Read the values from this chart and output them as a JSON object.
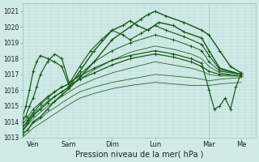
{
  "xlabel": "Pression niveau de la mer( hPa )",
  "ylim": [
    1013,
    1021.5
  ],
  "xlim": [
    0,
    6.5
  ],
  "yticks": [
    1013,
    1014,
    1015,
    1016,
    1017,
    1018,
    1019,
    1020,
    1021
  ],
  "xtick_labels": [
    "Ven",
    "Sam",
    "Dim",
    "Lun",
    "Mar",
    "Me"
  ],
  "xtick_positions": [
    0.3,
    1.3,
    2.5,
    3.7,
    5.2,
    6.1
  ],
  "vlines": [
    0.3,
    1.3,
    2.5,
    3.7,
    5.2,
    6.1
  ],
  "bg_color": "#d0eae8",
  "grid_major_color": "#90c8b8",
  "grid_minor_color": "#b0d8cc",
  "line_color": "#1a5e1a",
  "lw": 0.7,
  "lines": [
    {
      "x": [
        0,
        0.15,
        0.3,
        0.5,
        0.7,
        0.9,
        1.1,
        1.3,
        1.6,
        2.0,
        2.5,
        3.0,
        3.3,
        3.5,
        3.7,
        4.0,
        4.5,
        5.0,
        5.2,
        5.5,
        5.8,
        6.1
      ],
      "y": [
        1013.2,
        1013.5,
        1014.0,
        1014.3,
        1014.8,
        1015.3,
        1015.7,
        1016.1,
        1016.8,
        1017.8,
        1019.2,
        1020.0,
        1020.5,
        1020.8,
        1021.0,
        1020.7,
        1020.3,
        1019.8,
        1019.5,
        1018.5,
        1017.5,
        1017.1
      ],
      "markers": true,
      "lw_mult": 1.5
    },
    {
      "x": [
        0,
        0.15,
        0.3,
        0.5,
        0.7,
        0.9,
        1.1,
        1.3,
        1.6,
        2.0,
        2.5,
        2.8,
        3.0,
        3.2,
        3.5,
        3.8,
        4.2,
        4.5,
        5.0,
        5.2,
        5.5,
        6.1
      ],
      "y": [
        1013.4,
        1013.9,
        1014.4,
        1014.8,
        1015.2,
        1015.6,
        1015.9,
        1016.2,
        1017.2,
        1018.5,
        1019.8,
        1020.1,
        1020.4,
        1020.1,
        1019.8,
        1020.3,
        1020.1,
        1019.7,
        1019.3,
        1018.5,
        1017.4,
        1017.0
      ],
      "markers": true,
      "lw_mult": 1.5
    },
    {
      "x": [
        0,
        0.15,
        0.3,
        0.5,
        0.7,
        0.9,
        1.1,
        1.3,
        1.6,
        1.9,
        2.2,
        2.5,
        2.8,
        3.0,
        3.3,
        3.7,
        4.0,
        4.5,
        5.0,
        5.2,
        5.5,
        6.1
      ],
      "y": [
        1013.6,
        1014.1,
        1014.6,
        1015.1,
        1015.5,
        1015.9,
        1016.2,
        1016.4,
        1017.5,
        1018.5,
        1019.2,
        1019.8,
        1019.5,
        1019.2,
        1019.6,
        1020.1,
        1019.8,
        1019.4,
        1018.9,
        1018.2,
        1017.3,
        1017.0
      ],
      "markers": true,
      "lw_mult": 1.2
    },
    {
      "x": [
        0,
        0.15,
        0.3,
        0.5,
        0.7,
        0.9,
        1.1,
        1.3,
        1.6,
        2.0,
        2.5,
        3.0,
        3.7,
        4.2,
        4.7,
        5.0,
        5.2,
        5.5,
        6.1
      ],
      "y": [
        1013.8,
        1014.3,
        1014.8,
        1015.2,
        1015.6,
        1015.9,
        1016.2,
        1016.4,
        1017.0,
        1017.8,
        1018.5,
        1019.0,
        1019.5,
        1019.2,
        1018.8,
        1018.5,
        1017.8,
        1017.2,
        1017.0
      ],
      "markers": true,
      "lw_mult": 1.0
    },
    {
      "x": [
        0,
        0.15,
        0.3,
        0.5,
        0.7,
        0.9,
        1.1,
        1.3,
        1.6,
        2.0,
        2.5,
        3.0,
        3.7,
        4.2,
        4.7,
        5.0,
        5.2,
        5.5,
        6.1
      ],
      "y": [
        1013.6,
        1014.0,
        1014.5,
        1014.9,
        1015.3,
        1015.6,
        1015.9,
        1016.2,
        1016.7,
        1017.3,
        1017.9,
        1018.4,
        1018.8,
        1018.6,
        1018.3,
        1018.0,
        1017.5,
        1017.1,
        1016.9
      ],
      "markers": false,
      "lw_mult": 0.8
    },
    {
      "x": [
        0,
        0.15,
        0.3,
        0.5,
        0.7,
        0.9,
        1.1,
        1.3,
        1.6,
        2.0,
        2.5,
        3.0,
        3.7,
        4.2,
        4.7,
        5.0,
        5.2,
        5.5,
        6.1
      ],
      "y": [
        1013.4,
        1013.8,
        1014.2,
        1014.6,
        1015.0,
        1015.3,
        1015.6,
        1015.9,
        1016.3,
        1016.7,
        1017.1,
        1017.4,
        1017.8,
        1017.6,
        1017.4,
        1017.2,
        1017.0,
        1016.9,
        1016.9
      ],
      "markers": false,
      "lw_mult": 0.8
    },
    {
      "x": [
        0,
        0.15,
        0.3,
        0.5,
        0.7,
        0.9,
        1.1,
        1.3,
        1.6,
        2.0,
        2.5,
        3.0,
        3.7,
        4.2,
        4.7,
        5.0,
        5.2,
        5.5,
        6.1
      ],
      "y": [
        1013.2,
        1013.5,
        1013.9,
        1014.2,
        1014.6,
        1014.9,
        1015.2,
        1015.5,
        1015.9,
        1016.2,
        1016.5,
        1016.7,
        1017.0,
        1016.9,
        1016.8,
        1016.7,
        1016.6,
        1016.7,
        1016.8
      ],
      "markers": false,
      "lw_mult": 0.8
    },
    {
      "x": [
        0,
        0.15,
        0.3,
        0.5,
        0.7,
        0.9,
        1.1,
        1.3,
        1.6,
        2.0,
        2.5,
        3.0,
        3.7,
        4.2,
        4.7,
        5.0,
        5.2,
        5.5,
        6.1
      ],
      "y": [
        1013.0,
        1013.3,
        1013.6,
        1013.9,
        1014.2,
        1014.5,
        1014.8,
        1015.1,
        1015.5,
        1015.8,
        1016.1,
        1016.3,
        1016.5,
        1016.4,
        1016.3,
        1016.3,
        1016.3,
        1016.4,
        1016.5
      ],
      "markers": false,
      "lw_mult": 0.8
    },
    {
      "x": [
        0,
        0.1,
        0.2,
        0.3,
        0.4,
        0.5,
        0.7,
        0.9,
        1.1,
        1.3,
        1.6,
        2.0,
        2.5,
        3.0,
        3.7,
        4.2,
        4.7,
        5.0,
        5.2,
        5.35,
        5.5,
        5.65,
        5.8,
        5.95,
        6.1
      ],
      "y": [
        1014.0,
        1014.4,
        1015.0,
        1015.5,
        1016.2,
        1017.0,
        1017.8,
        1018.3,
        1018.0,
        1016.5,
        1016.9,
        1017.4,
        1017.9,
        1018.2,
        1018.5,
        1018.3,
        1018.0,
        1017.7,
        1016.0,
        1014.8,
        1015.0,
        1015.5,
        1014.8,
        1016.2,
        1017.1
      ],
      "markers": true,
      "lw_mult": 1.3
    },
    {
      "x": [
        0,
        0.1,
        0.2,
        0.3,
        0.4,
        0.5,
        0.7,
        0.9,
        1.1,
        1.3,
        1.6,
        2.0,
        2.5,
        3.0,
        3.7,
        4.2,
        4.7,
        5.0,
        5.2,
        5.5,
        6.1
      ],
      "y": [
        1014.3,
        1015.0,
        1016.0,
        1017.2,
        1017.8,
        1018.2,
        1018.0,
        1017.8,
        1017.5,
        1016.3,
        1016.7,
        1017.1,
        1017.6,
        1018.0,
        1018.3,
        1018.1,
        1017.8,
        1017.5,
        1017.2,
        1017.0,
        1016.9
      ],
      "markers": true,
      "lw_mult": 1.3
    }
  ]
}
